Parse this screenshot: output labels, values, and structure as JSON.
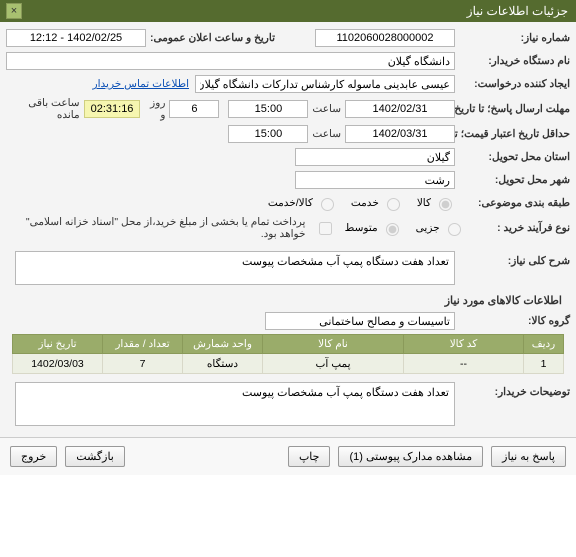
{
  "header": {
    "title": "جزئیات اطلاعات نیاز"
  },
  "fields": {
    "need_no_label": "شماره نیاز:",
    "need_no": "1102060028000002",
    "announce_datetime_label": "تاریخ و ساعت اعلان عمومی:",
    "announce_datetime": "1402/02/25 - 12:12",
    "buyer_org_label": "نام دستگاه خریدار:",
    "buyer_org": "دانشگاه گیلان",
    "requester_label": "ایجاد کننده درخواست:",
    "requester": "عیسی عابدینی ماسوله کارشناس تدارکات دانشگاه گیلان",
    "contact_info_link": "اطلاعات تماس خریدار",
    "deadline_label": "مهلت ارسال پاسخ؛ تا تاریخ:",
    "deadline_date": "1402/02/31",
    "time_word": "ساعت",
    "deadline_time": "15:00",
    "days_word": "روز و",
    "remain_days": "6",
    "remain_time": "02:31:16",
    "remain_suffix": "ساعت باقی مانده",
    "price_validity_label": "حداقل تاریخ اعتبار قیمت؛ تا تاریخ:",
    "price_validity_date": "1402/03/31",
    "price_validity_time": "15:00",
    "province_label": "استان محل تحویل:",
    "province": "گیلان",
    "city_label": "شهر محل تحویل:",
    "city": "رشت",
    "classify_label": "طبقه بندی موضوعی:",
    "classify_opts": {
      "goods": "کالا",
      "service": "خدمت",
      "goods_service": "کالا/خدمت"
    },
    "process_label": "نوع فرآیند خرید :",
    "process_opts": {
      "small": "جزیی",
      "medium": "متوسط"
    },
    "payment_cb_label": "پرداخت تمام یا بخشی از مبلغ خرید،از محل \"اسناد خزانه اسلامی\" خواهد بود.",
    "summary_label": "شرح کلی نیاز:",
    "summary_text": "تعداد هفت دستگاه پمپ آب مشخصات پیوست"
  },
  "goods": {
    "section_title": "اطلاعات کالاهای مورد نیاز",
    "group_label": "گروه کالا:",
    "group_value": "تاسیسات و مصالح ساختمانی",
    "columns": {
      "row": "ردیف",
      "code": "کد کالا",
      "name": "نام کالا",
      "unit": "واحد شمارش",
      "qty": "تعداد / مقدار",
      "need_date": "تاریخ نیاز"
    },
    "rows": [
      {
        "row": "1",
        "code": "--",
        "name": "پمپ آب",
        "unit": "دستگاه",
        "qty": "7",
        "need_date": "1402/03/03"
      }
    ]
  },
  "buyer_comment_label": "توضیحات خریدار:",
  "buyer_comment_text": "تعداد هفت دستگاه پمپ آب مشخصات پیوست",
  "footer": {
    "respond": "پاسخ به نیاز",
    "view_docs": "مشاهده مدارک پیوستی (1)",
    "print": "چاپ",
    "back": "بازگشت",
    "exit": "خروج"
  }
}
